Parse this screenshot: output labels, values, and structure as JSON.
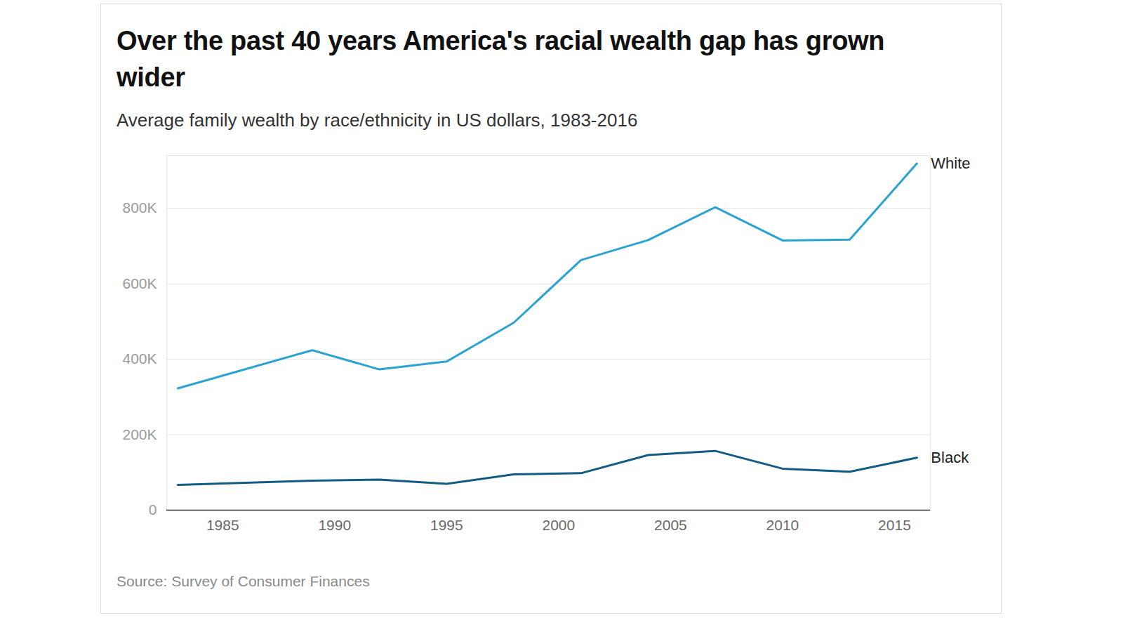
{
  "chart_data": {
    "type": "line",
    "title": "Over the past 40 years America's racial wealth gap has grown wider",
    "subtitle": "Average family wealth by race/ethnicity in US dollars, 1983-2016",
    "caption": "Source: Survey of Consumer Finances",
    "x": [
      1983,
      1989,
      1992,
      1995,
      1998,
      2001,
      2004,
      2007,
      2010,
      2013,
      2016
    ],
    "series": [
      {
        "name": "White",
        "color": "#2aa3d3",
        "values": [
          323000,
          424000,
          373000,
          394000,
          497000,
          663000,
          716000,
          803000,
          715000,
          717000,
          919000
        ]
      },
      {
        "name": "Black",
        "color": "#135b82",
        "values": [
          67000,
          78000,
          81000,
          70000,
          95000,
          98000,
          146000,
          157000,
          110000,
          102000,
          139000
        ]
      }
    ],
    "xlim": [
      1982.5,
      2016.6
    ],
    "xticks": [
      1985,
      1990,
      1995,
      2000,
      2005,
      2010,
      2015
    ],
    "ylim": [
      0,
      940000
    ],
    "yticks": [
      0,
      {
        "value": 200000,
        "label": "200K"
      },
      {
        "value": 400000,
        "label": "400K"
      },
      {
        "value": 600000,
        "label": "600K"
      },
      {
        "value": 800000,
        "label": "800K"
      }
    ],
    "grid": true
  }
}
